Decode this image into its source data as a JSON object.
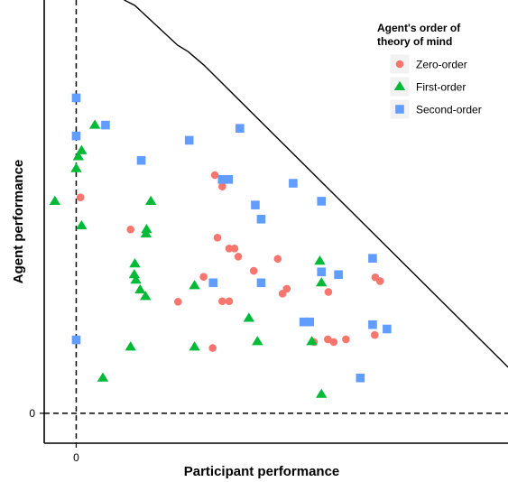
{
  "chart_data": {
    "type": "scatter",
    "xlabel": "Participant performance",
    "ylabel": "Agent performance",
    "x_ticks": [
      {
        "value": 0,
        "label": "0"
      }
    ],
    "y_ticks": [
      {
        "value": 0,
        "label": "0"
      }
    ],
    "xlim": [
      -0.6,
      8.1
    ],
    "ylim": [
      -0.55,
      7.6
    ],
    "grid": false,
    "reference_lines": {
      "x": 0,
      "y": 0,
      "style": "dashed"
    },
    "boundary_line": [
      [
        0.9,
        7.6
      ],
      [
        1.1,
        7.5
      ],
      [
        1.9,
        6.77
      ],
      [
        2.1,
        6.65
      ],
      [
        2.4,
        6.4
      ],
      [
        8.1,
        0.85
      ]
    ],
    "legend": {
      "title_lines": [
        "Agent's order of",
        "theory of mind"
      ],
      "placement": "top-right"
    },
    "series": [
      {
        "name": "Zero-order",
        "marker": "circle",
        "color": "#F8766D",
        "points": [
          [
            0.08,
            3.97
          ],
          [
            1.02,
            3.38
          ],
          [
            2.6,
            4.38
          ],
          [
            2.74,
            4.17
          ],
          [
            2.65,
            3.23
          ],
          [
            2.87,
            3.03
          ],
          [
            2.97,
            3.03
          ],
          [
            3.04,
            2.88
          ],
          [
            2.39,
            2.51
          ],
          [
            1.91,
            2.05
          ],
          [
            2.74,
            2.06
          ],
          [
            2.87,
            2.06
          ],
          [
            3.33,
            2.62
          ],
          [
            3.78,
            2.84
          ],
          [
            3.95,
            2.29
          ],
          [
            3.87,
            2.2
          ],
          [
            4.73,
            2.23
          ],
          [
            5.61,
            2.5
          ],
          [
            5.7,
            2.43
          ],
          [
            4.72,
            1.36
          ],
          [
            4.83,
            1.31
          ],
          [
            4.46,
            1.31
          ],
          [
            5.06,
            1.36
          ],
          [
            5.6,
            1.44
          ],
          [
            2.56,
            1.2
          ]
        ]
      },
      {
        "name": "First-order",
        "marker": "triangle",
        "color": "#00BA38",
        "points": [
          [
            0.35,
            5.3
          ],
          [
            -0.4,
            3.9
          ],
          [
            0.04,
            4.72
          ],
          [
            0.1,
            4.83
          ],
          [
            0.0,
            4.5
          ],
          [
            0.1,
            3.45
          ],
          [
            1.4,
            3.9
          ],
          [
            1.31,
            3.3
          ],
          [
            1.32,
            3.38
          ],
          [
            1.1,
            2.75
          ],
          [
            1.09,
            2.55
          ],
          [
            1.12,
            2.45
          ],
          [
            1.2,
            2.27
          ],
          [
            1.3,
            2.15
          ],
          [
            2.22,
            2.35
          ],
          [
            3.24,
            1.75
          ],
          [
            4.57,
            2.8
          ],
          [
            4.6,
            2.4
          ],
          [
            3.4,
            1.32
          ],
          [
            0.5,
            0.65
          ],
          [
            1.02,
            1.22
          ],
          [
            2.22,
            1.22
          ],
          [
            4.42,
            1.32
          ],
          [
            4.6,
            0.35
          ]
        ]
      },
      {
        "name": "Second-order",
        "marker": "square",
        "color": "#619CFF",
        "points": [
          [
            0.0,
            5.8
          ],
          [
            0.0,
            5.1
          ],
          [
            0.55,
            5.3
          ],
          [
            1.22,
            4.65
          ],
          [
            2.12,
            5.02
          ],
          [
            3.07,
            5.24
          ],
          [
            2.74,
            4.3
          ],
          [
            2.86,
            4.3
          ],
          [
            3.36,
            3.83
          ],
          [
            3.47,
            3.57
          ],
          [
            4.07,
            4.23
          ],
          [
            4.6,
            3.9
          ],
          [
            5.56,
            2.85
          ],
          [
            4.6,
            2.6
          ],
          [
            4.92,
            2.55
          ],
          [
            2.57,
            2.4
          ],
          [
            3.47,
            2.4
          ],
          [
            4.27,
            1.68
          ],
          [
            4.38,
            1.68
          ],
          [
            5.56,
            1.63
          ],
          [
            5.83,
            1.55
          ],
          [
            5.33,
            0.65
          ],
          [
            0.0,
            1.35
          ]
        ]
      }
    ]
  }
}
